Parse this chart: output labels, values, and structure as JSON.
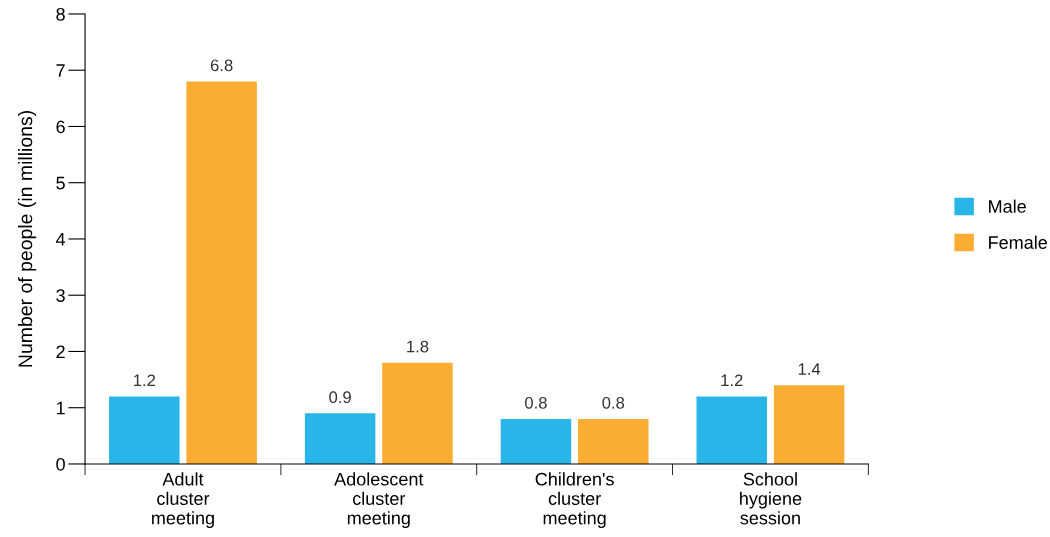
{
  "chart_data": {
    "type": "bar",
    "ylabel": "Number of people (in millions)",
    "categories": [
      "Adult\ncluster\nmeeting",
      "Adolescent\ncluster\nmeeting",
      "Children's\ncluster\nmeeting",
      "School\nhygiene\nsession"
    ],
    "series": [
      {
        "name": "Male",
        "color": "#29b5e8",
        "values": [
          1.2,
          0.9,
          0.8,
          1.2
        ]
      },
      {
        "name": "Female",
        "color": "#f9ae33",
        "values": [
          6.8,
          1.8,
          0.8,
          1.4
        ]
      }
    ],
    "ylim": [
      0,
      8
    ],
    "yticks": [
      0,
      1,
      2,
      3,
      4,
      5,
      6,
      7,
      8
    ],
    "data_labels": true,
    "grid": false,
    "legend": "right"
  }
}
